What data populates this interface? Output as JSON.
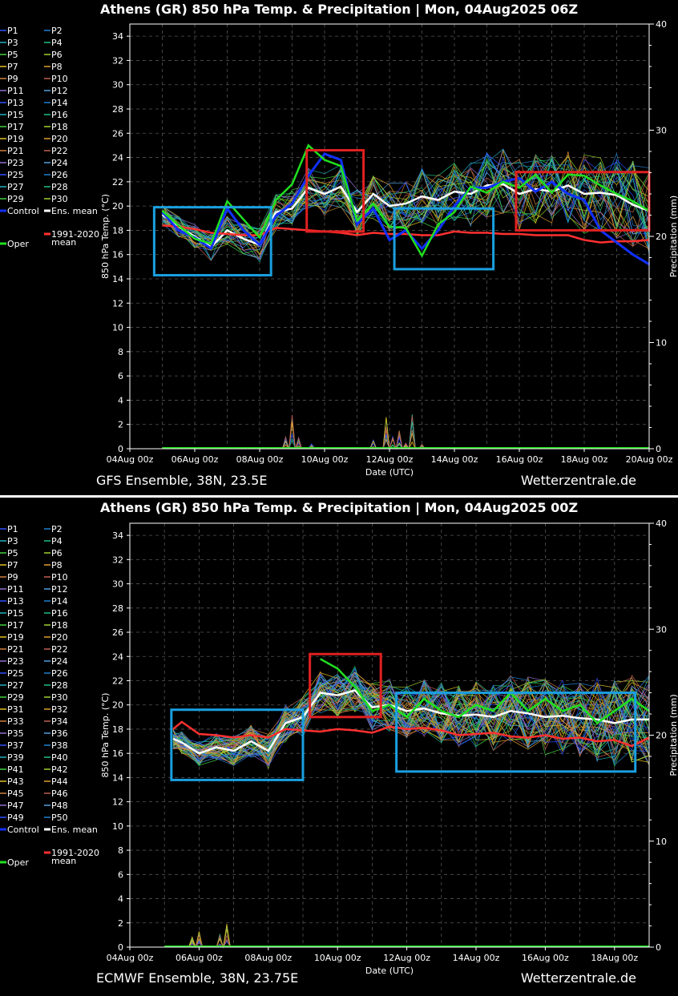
{
  "panels": [
    {
      "title": "Athens  (GR)  850 hPa Temp. & Precipitation | Mon, 04Aug2025 06Z",
      "model": "GFS Ensemble, 38N, 23.5E",
      "site": "Wetterzentrale.de",
      "legend": [
        "P1",
        "P2",
        "P3",
        "P4",
        "P5",
        "P6",
        "P7",
        "P8",
        "P9",
        "P10",
        "P11",
        "P12",
        "P13",
        "P14",
        "P15",
        "P16",
        "P17",
        "P18",
        "P19",
        "P20",
        "P21",
        "P22",
        "P23",
        "P24",
        "P25",
        "P26",
        "P27",
        "P28",
        "P29",
        "P30"
      ],
      "legend_special": {
        "control": "Control",
        "mean": "Ens. mean",
        "climo": "1991-2020\nmean",
        "oper": "Oper"
      }
    },
    {
      "title": "Athens  (GR)  850 hPa Temp. & Precipitation | Mon, 04Aug2025 00Z",
      "model": "ECMWF Ensemble, 38N, 23.75E",
      "site": "Wetterzentrale.de",
      "legend": [
        "P1",
        "P2",
        "P3",
        "P4",
        "P5",
        "P6",
        "P7",
        "P8",
        "P9",
        "P10",
        "P11",
        "P12",
        "P13",
        "P14",
        "P15",
        "P16",
        "P17",
        "P18",
        "P19",
        "P20",
        "P21",
        "P22",
        "P23",
        "P24",
        "P25",
        "P26",
        "P27",
        "P28",
        "P29",
        "P30",
        "P31",
        "P32",
        "P33",
        "P34",
        "P35",
        "P36",
        "P37",
        "P38",
        "P39",
        "P40",
        "P41",
        "P42",
        "P43",
        "P44",
        "P45",
        "P46",
        "P47",
        "P48",
        "P49",
        "P50"
      ],
      "legend_special": {
        "control": "Control",
        "mean": "Ens. mean",
        "climo": "1991-2020\nmean",
        "oper": "Oper"
      }
    }
  ],
  "colors": {
    "member_palette": [
      "#3050ff",
      "#2080d0",
      "#20b0c0",
      "#20c080",
      "#40d040",
      "#a0d030",
      "#e0c020",
      "#e0a030",
      "#d08040",
      "#c06050",
      "#9070d0",
      "#50a0e0"
    ],
    "control": "#1030ff",
    "mean": "#ffffff",
    "climo": "#ff3030",
    "oper": "#20e020",
    "box_blue": "#1aa0e0",
    "box_red": "#e02020"
  },
  "chart_data": [
    {
      "type": "line",
      "ylabel": "850 hPa Temp. (°C)",
      "ylabel_right": "Precipitation (mm)",
      "xlabel": "Date (UTC)",
      "x_ticks": [
        "04Aug 00z",
        "06Aug 00z",
        "08Aug 00z",
        "10Aug 00z",
        "12Aug 00z",
        "14Aug 00z",
        "16Aug 00z",
        "18Aug 00z",
        "20Aug 00z"
      ],
      "x_range_days": [
        0,
        16
      ],
      "ylim": [
        0,
        35
      ],
      "y_ticks": [
        0,
        2,
        4,
        6,
        8,
        10,
        12,
        14,
        16,
        18,
        20,
        22,
        24,
        26,
        28,
        30,
        32,
        34
      ],
      "y2lim": [
        0,
        40
      ],
      "y2_ticks": [
        0,
        10,
        20,
        30,
        40
      ],
      "grid": true,
      "series": [
        {
          "name": "Ens. mean",
          "x": [
            1,
            1.5,
            2,
            2.5,
            3,
            3.5,
            4,
            4.5,
            5,
            5.5,
            6,
            6.5,
            7,
            7.5,
            8,
            8.5,
            9,
            9.5,
            10,
            10.5,
            11,
            11.5,
            12,
            12.5,
            13,
            13.5,
            14,
            14.5,
            15,
            15.5,
            16
          ],
          "values": [
            19.3,
            18.3,
            17.5,
            16.6,
            18.0,
            17.3,
            16.8,
            19.5,
            19.8,
            21.5,
            21.0,
            21.6,
            19.5,
            21.0,
            20.0,
            20.2,
            20.8,
            20.5,
            21.2,
            21.0,
            21.7,
            21.8,
            21.0,
            21.4,
            21.2,
            21.7,
            21.0,
            21.1,
            20.9,
            20.1,
            19.6
          ]
        },
        {
          "name": "1991-2020 mean",
          "x": [
            1,
            1.5,
            2,
            2.5,
            3,
            3.5,
            4,
            4.5,
            5,
            5.5,
            6,
            6.5,
            7,
            7.5,
            8,
            8.5,
            9,
            9.5,
            10,
            10.5,
            11,
            11.5,
            12,
            12.5,
            13,
            13.5,
            14,
            14.5,
            15,
            15.5,
            16
          ],
          "values": [
            18.4,
            18.3,
            18.1,
            17.8,
            17.7,
            17.6,
            17.6,
            18.2,
            18.1,
            18.0,
            17.9,
            17.8,
            17.6,
            17.8,
            17.7,
            17.7,
            17.6,
            17.6,
            17.9,
            17.8,
            17.8,
            17.7,
            17.7,
            17.6,
            17.6,
            17.6,
            17.2,
            17.0,
            17.1,
            17.1,
            17.2
          ]
        },
        {
          "name": "Control",
          "x": [
            1,
            1.5,
            2,
            2.5,
            3,
            3.5,
            4,
            4.5,
            5,
            5.5,
            6,
            6.5,
            7,
            7.5,
            8,
            8.5,
            9,
            9.5,
            10,
            10.5,
            11,
            11.5,
            12,
            12.5,
            13,
            13.5,
            14,
            14.5,
            15,
            15.5,
            16
          ],
          "values": [
            19.5,
            18.0,
            17.4,
            16.5,
            19.8,
            18.0,
            16.8,
            19.2,
            20.2,
            22.5,
            24.3,
            23.8,
            18.5,
            19.8,
            17.2,
            18.0,
            16.5,
            18.0,
            20.0,
            21.5,
            21.5,
            22.0,
            22.3,
            21.2,
            22.0,
            21.0,
            20.5,
            18.0,
            17.0,
            16.0,
            15.2
          ]
        },
        {
          "name": "Oper",
          "x": [
            1,
            1.5,
            2,
            2.5,
            3,
            3.5,
            4,
            4.5,
            5,
            5.5,
            6,
            6.5,
            7,
            7.5,
            8,
            8.5,
            9,
            9.5,
            10,
            10.5,
            11,
            11.5,
            12,
            12.5,
            13,
            13.5,
            14,
            14.5,
            15,
            15.5,
            16
          ],
          "values": [
            19.6,
            18.4,
            17.3,
            16.9,
            20.4,
            18.9,
            17.4,
            20.5,
            21.8,
            25.0,
            23.8,
            23.3,
            18.8,
            20.2,
            18.3,
            18.2,
            15.9,
            18.5,
            19.5,
            21.6,
            21.1,
            22.0,
            21.5,
            22.6,
            21.1,
            22.6,
            22.5,
            21.7,
            21.0,
            20.4,
            19.6
          ]
        }
      ],
      "precip": {
        "x": [
          4.8,
          5.0,
          5.2,
          5.6,
          7.5,
          7.9,
          8.1,
          8.3,
          8.5,
          8.7,
          9.0
        ],
        "values": [
          1.2,
          4.0,
          1.0,
          0.5,
          0.8,
          3.0,
          1.2,
          1.6,
          0.6,
          3.0,
          0.5
        ]
      },
      "annotations": {
        "boxes": [
          {
            "color": "blue",
            "x0": 0.75,
            "x1": 4.35,
            "y0": 14.3,
            "y1": 19.9
          },
          {
            "color": "red",
            "x0": 5.45,
            "x1": 7.2,
            "y0": 17.9,
            "y1": 24.6
          },
          {
            "color": "blue",
            "x0": 8.15,
            "x1": 11.2,
            "y0": 14.8,
            "y1": 19.8
          },
          {
            "color": "red",
            "x0": 11.9,
            "x1": 16.0,
            "y0": 18.0,
            "y1": 22.8
          }
        ]
      }
    },
    {
      "type": "line",
      "ylabel": "850 hPa Temp. (°C)",
      "ylabel_right": "Precipitation (mm)",
      "xlabel": "Date (UTC)",
      "x_ticks": [
        "04Aug 00z",
        "06Aug 00z",
        "08Aug 00z",
        "10Aug 00z",
        "12Aug 00z",
        "14Aug 00z",
        "16Aug 00z",
        "18Aug 00z"
      ],
      "x_range_days": [
        0,
        15
      ],
      "ylim": [
        0,
        35
      ],
      "y_ticks": [
        0,
        2,
        4,
        6,
        8,
        10,
        12,
        14,
        16,
        18,
        20,
        22,
        24,
        26,
        28,
        30,
        32,
        34
      ],
      "y2lim": [
        0,
        40
      ],
      "y2_ticks": [
        0,
        10,
        20,
        30,
        40
      ],
      "grid": true,
      "series": [
        {
          "name": "Ens. mean",
          "x": [
            1.25,
            1.5,
            2,
            2.5,
            3,
            3.5,
            4,
            4.5,
            5,
            5.5,
            6,
            6.5,
            7,
            7.5,
            8,
            8.5,
            9,
            9.5,
            10,
            10.5,
            11,
            11.5,
            12,
            12.5,
            13,
            13.5,
            14,
            14.5,
            15
          ],
          "values": [
            17.2,
            16.9,
            16.0,
            16.5,
            16.2,
            17.0,
            16.2,
            18.5,
            19.0,
            21.0,
            20.8,
            21.2,
            19.8,
            20.0,
            19.5,
            19.7,
            19.3,
            19.1,
            19.2,
            19.0,
            19.5,
            19.3,
            19.0,
            19.1,
            18.9,
            18.8,
            18.5,
            18.8,
            18.8
          ]
        },
        {
          "name": "1991-2020 mean",
          "x": [
            1.25,
            1.5,
            2,
            2.5,
            3,
            3.5,
            4,
            4.5,
            5,
            5.5,
            6,
            6.5,
            7,
            7.5,
            8,
            8.5,
            9,
            9.5,
            10,
            10.5,
            11,
            11.5,
            12,
            12.5,
            13,
            13.5,
            14,
            14.5,
            15
          ],
          "values": [
            18.0,
            18.6,
            17.6,
            17.5,
            17.3,
            17.5,
            17.3,
            18.0,
            17.9,
            17.8,
            18.0,
            17.9,
            17.7,
            18.2,
            18.0,
            18.1,
            17.9,
            17.5,
            17.6,
            17.7,
            17.4,
            17.3,
            17.5,
            17.2,
            17.3,
            17.0,
            17.1,
            16.6,
            17.3
          ]
        },
        {
          "name": "Oper",
          "x": [
            5.5,
            6,
            6.5,
            7,
            7.5,
            8,
            8.5,
            9,
            9.5,
            10,
            10.5,
            11,
            11.5,
            12,
            12.5,
            13,
            13.5,
            14,
            14.5,
            15
          ],
          "values": [
            23.8,
            23.0,
            21.5,
            19.5,
            20.0,
            19.0,
            20.5,
            19.5,
            19.0,
            20.0,
            19.5,
            21.0,
            19.5,
            20.5,
            19.5,
            20.0,
            18.5,
            19.5,
            20.5,
            19.5
          ]
        }
      ],
      "precip": {
        "x": [
          1.8,
          2.0,
          2.6,
          2.8
        ],
        "values": [
          1.2,
          1.8,
          1.2,
          2.0
        ]
      },
      "annotations": {
        "boxes": [
          {
            "color": "blue",
            "x0": 1.2,
            "x1": 5.0,
            "y0": 13.8,
            "y1": 19.6
          },
          {
            "color": "red",
            "x0": 5.2,
            "x1": 7.25,
            "y0": 19.0,
            "y1": 24.2
          },
          {
            "color": "blue",
            "x0": 7.7,
            "x1": 14.6,
            "y0": 14.5,
            "y1": 21.0
          }
        ]
      }
    }
  ]
}
